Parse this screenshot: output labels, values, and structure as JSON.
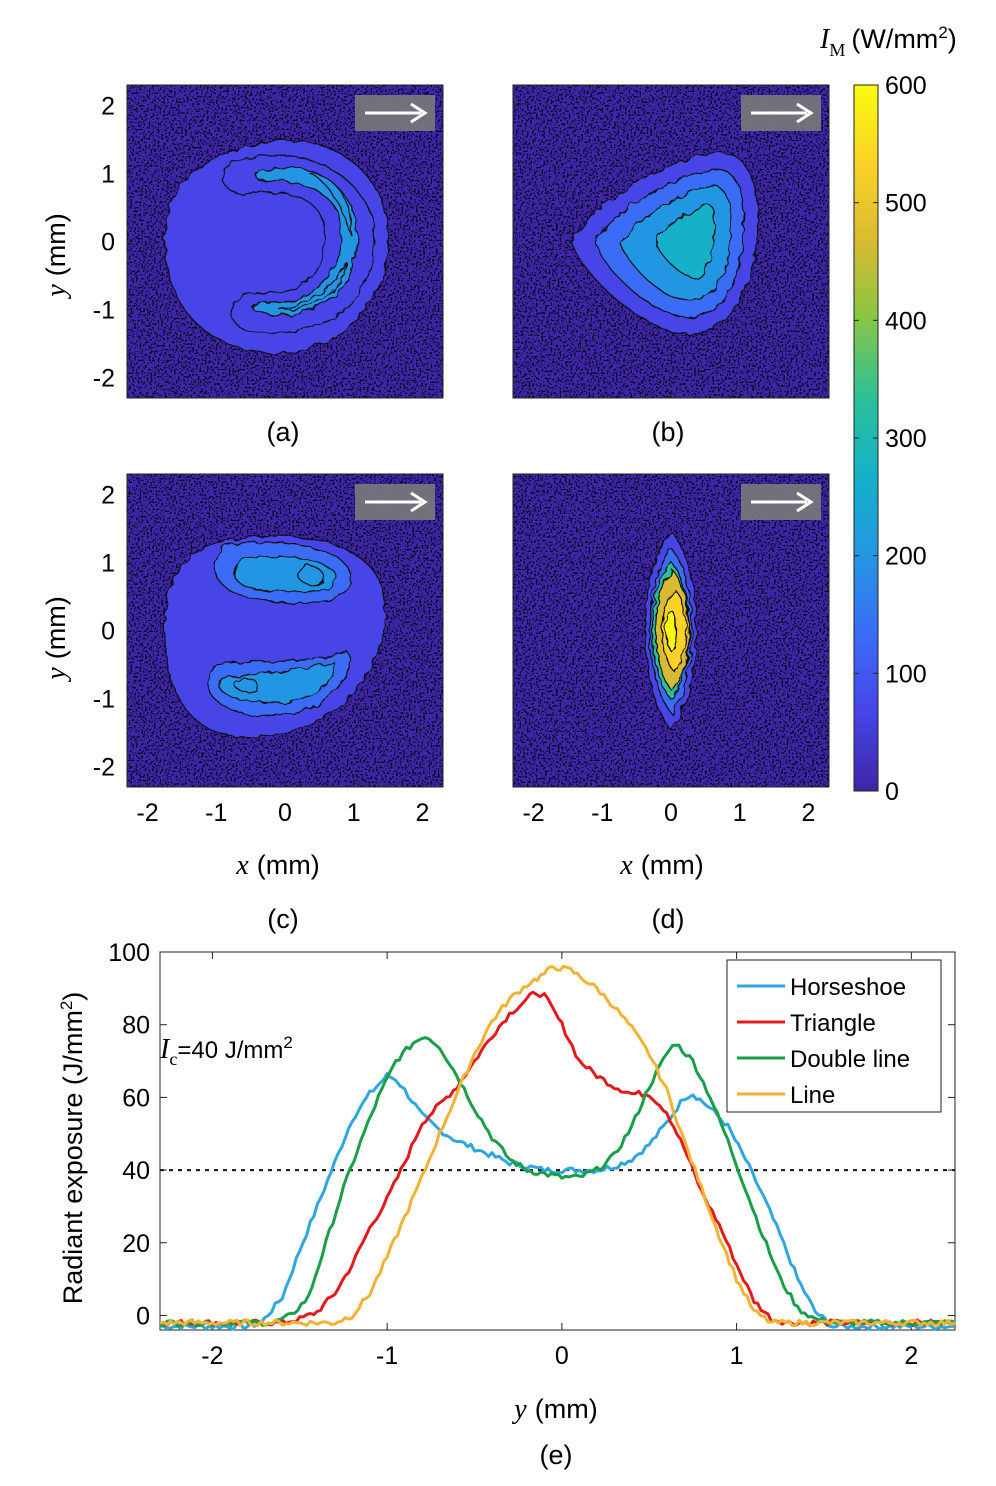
{
  "chart_data": [
    {
      "type": "heatmap",
      "panel_label": "(a)",
      "shape": "horseshoe",
      "xlabel_var": "x",
      "xlabel_unit": "(mm)",
      "ylabel_var": "y",
      "ylabel_unit": "(mm)",
      "xlim": [
        -2.3,
        2.3
      ],
      "ylim": [
        -2.3,
        2.3
      ],
      "x_ticks": [
        "-2",
        "-1",
        "0",
        "1",
        "2"
      ],
      "y_ticks": [
        "2",
        "1",
        "0",
        "-1",
        "-2"
      ],
      "arrow": "right"
    },
    {
      "type": "heatmap",
      "panel_label": "(b)",
      "shape": "triangle",
      "xlim": [
        -2.3,
        2.3
      ],
      "ylim": [
        -2.3,
        2.3
      ],
      "arrow": "right"
    },
    {
      "type": "heatmap",
      "panel_label": "(c)",
      "shape": "double line",
      "xlabel_var": "x",
      "xlabel_unit": "(mm)",
      "ylabel_var": "y",
      "ylabel_unit": "(mm)",
      "xlim": [
        -2.3,
        2.3
      ],
      "ylim": [
        -2.3,
        2.3
      ],
      "x_ticks": [
        "-2",
        "-1",
        "0",
        "1",
        "2"
      ],
      "y_ticks": [
        "2",
        "1",
        "0",
        "-1",
        "-2"
      ],
      "arrow": "right"
    },
    {
      "type": "heatmap",
      "panel_label": "(d)",
      "shape": "line",
      "xlabel_var": "x",
      "xlabel_unit": "(mm)",
      "xlim": [
        -2.3,
        2.3
      ],
      "ylim": [
        -2.3,
        2.3
      ],
      "x_ticks": [
        "-2",
        "-1",
        "0",
        "1",
        "2"
      ],
      "arrow": "right"
    },
    {
      "type": "colorbar",
      "label_var": "I",
      "label_sub": "M",
      "label_unit": "(W/mm",
      "label_sup": "2",
      "label_close": ")",
      "range": [
        0,
        600
      ],
      "ticks": [
        "600",
        "500",
        "400",
        "300",
        "200",
        "100",
        "0"
      ],
      "colormap": [
        "#3e26a8",
        "#4744e8",
        "#3b6cf7",
        "#2496e2",
        "#14b1c9",
        "#2cc09a",
        "#85c645",
        "#d8bb30",
        "#fbd227",
        "#f9fb0e"
      ]
    },
    {
      "type": "line",
      "panel_label": "(e)",
      "title": "",
      "xlabel_var": "y",
      "xlabel_unit": "(mm)",
      "ylabel": "Radiant exposure (J/mm",
      "ylabel_sup": "2",
      "ylabel_close": ")",
      "xlim": [
        -2.3,
        2.25
      ],
      "ylim": [
        -4,
        100
      ],
      "x_ticks": [
        "-2",
        "-1",
        "0",
        "1",
        "2"
      ],
      "y_ticks": [
        "100",
        "80",
        "60",
        "40",
        "20",
        "0"
      ],
      "threshold": {
        "value": 40,
        "label_var": "I",
        "label_sub": "c",
        "label_text": "=40 J/mm",
        "label_sup": "2"
      },
      "legend_position": "top-right",
      "series": [
        {
          "name": "Horseshoe",
          "color": "#2ea7e0",
          "points": [
            [
              -2.3,
              -3
            ],
            [
              -1.8,
              -3
            ],
            [
              -1.72,
              -2
            ],
            [
              -1.6,
              5
            ],
            [
              -1.5,
              18
            ],
            [
              -1.4,
              30
            ],
            [
              -1.3,
              42
            ],
            [
              -1.2,
              54
            ],
            [
              -1.1,
              61
            ],
            [
              -1.0,
              66
            ],
            [
              -0.95,
              65
            ],
            [
              -0.9,
              62
            ],
            [
              -0.8,
              55
            ],
            [
              -0.7,
              51
            ],
            [
              -0.6,
              48
            ],
            [
              -0.5,
              46
            ],
            [
              -0.4,
              44
            ],
            [
              -0.3,
              42
            ],
            [
              -0.2,
              41
            ],
            [
              -0.1,
              40
            ],
            [
              0.0,
              40
            ],
            [
              0.1,
              40
            ],
            [
              0.2,
              40
            ],
            [
              0.3,
              41
            ],
            [
              0.4,
              43
            ],
            [
              0.5,
              47
            ],
            [
              0.6,
              53
            ],
            [
              0.7,
              60
            ],
            [
              0.75,
              61
            ],
            [
              0.85,
              57
            ],
            [
              0.95,
              52
            ],
            [
              1.05,
              43
            ],
            [
              1.15,
              33
            ],
            [
              1.25,
              22
            ],
            [
              1.35,
              10
            ],
            [
              1.45,
              1
            ],
            [
              1.55,
              -3
            ],
            [
              1.7,
              -3
            ],
            [
              2.25,
              -3
            ]
          ]
        },
        {
          "name": "Triangle",
          "color": "#e31a1c",
          "points": [
            [
              -2.3,
              -2
            ],
            [
              -1.6,
              -2
            ],
            [
              -1.5,
              -1
            ],
            [
              -1.4,
              1
            ],
            [
              -1.3,
              6
            ],
            [
              -1.2,
              14
            ],
            [
              -1.1,
              24
            ],
            [
              -1.0,
              32
            ],
            [
              -0.9,
              42
            ],
            [
              -0.8,
              53
            ],
            [
              -0.7,
              58
            ],
            [
              -0.6,
              63
            ],
            [
              -0.5,
              70
            ],
            [
              -0.4,
              77
            ],
            [
              -0.3,
              83
            ],
            [
              -0.2,
              87
            ],
            [
              -0.15,
              89
            ],
            [
              -0.1,
              88
            ],
            [
              0.0,
              80
            ],
            [
              0.1,
              70
            ],
            [
              0.2,
              66
            ],
            [
              0.3,
              63
            ],
            [
              0.4,
              61
            ],
            [
              0.5,
              61
            ],
            [
              0.6,
              56
            ],
            [
              0.7,
              46
            ],
            [
              0.8,
              34
            ],
            [
              0.9,
              25
            ],
            [
              1.0,
              14
            ],
            [
              1.1,
              4
            ],
            [
              1.2,
              -1
            ],
            [
              1.3,
              -2
            ],
            [
              2.25,
              -2
            ]
          ]
        },
        {
          "name": "Double line",
          "color": "#1a9e4a",
          "points": [
            [
              -2.3,
              -2
            ],
            [
              -1.65,
              -2
            ],
            [
              -1.55,
              0
            ],
            [
              -1.45,
              5
            ],
            [
              -1.35,
              20
            ],
            [
              -1.25,
              35
            ],
            [
              -1.15,
              48
            ],
            [
              -1.05,
              60
            ],
            [
              -0.95,
              70
            ],
            [
              -0.85,
              75
            ],
            [
              -0.78,
              77
            ],
            [
              -0.7,
              74
            ],
            [
              -0.6,
              66
            ],
            [
              -0.5,
              57
            ],
            [
              -0.4,
              49
            ],
            [
              -0.3,
              43
            ],
            [
              -0.2,
              40
            ],
            [
              -0.1,
              39
            ],
            [
              0.0,
              38
            ],
            [
              0.1,
              38
            ],
            [
              0.2,
              40
            ],
            [
              0.3,
              44
            ],
            [
              0.4,
              52
            ],
            [
              0.5,
              63
            ],
            [
              0.6,
              72
            ],
            [
              0.65,
              75
            ],
            [
              0.75,
              70
            ],
            [
              0.85,
              60
            ],
            [
              0.95,
              48
            ],
            [
              1.05,
              35
            ],
            [
              1.15,
              22
            ],
            [
              1.25,
              10
            ],
            [
              1.35,
              2
            ],
            [
              1.45,
              -1
            ],
            [
              1.55,
              -2
            ],
            [
              2.25,
              -2
            ]
          ]
        },
        {
          "name": "Line",
          "color": "#f2b233",
          "points": [
            [
              -2.3,
              -2
            ],
            [
              -1.3,
              -2
            ],
            [
              -1.2,
              0
            ],
            [
              -1.1,
              6
            ],
            [
              -1.0,
              16
            ],
            [
              -0.9,
              27
            ],
            [
              -0.8,
              38
            ],
            [
              -0.7,
              50
            ],
            [
              -0.6,
              61
            ],
            [
              -0.5,
              72
            ],
            [
              -0.4,
              81
            ],
            [
              -0.3,
              87
            ],
            [
              -0.2,
              91
            ],
            [
              -0.1,
              94
            ],
            [
              -0.05,
              96
            ],
            [
              0.05,
              95
            ],
            [
              0.2,
              90
            ],
            [
              0.3,
              85
            ],
            [
              0.4,
              79
            ],
            [
              0.5,
              72
            ],
            [
              0.6,
              62
            ],
            [
              0.7,
              48
            ],
            [
              0.8,
              35
            ],
            [
              0.9,
              22
            ],
            [
              1.0,
              10
            ],
            [
              1.1,
              1
            ],
            [
              1.2,
              -2
            ],
            [
              2.25,
              -2
            ]
          ]
        }
      ]
    }
  ]
}
